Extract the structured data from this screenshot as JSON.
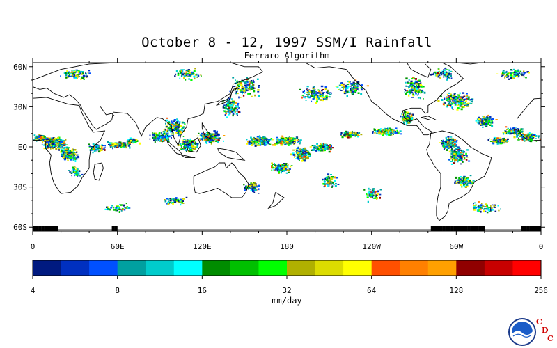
{
  "title": "October 8 - 12, 1997 SSM/I Rainfall",
  "subtitle": "Ferraro Algorithm",
  "map": {
    "lat_labels": [
      "60N",
      "30N",
      "EQ",
      "30S",
      "60S"
    ],
    "lat_values": [
      60,
      30,
      0,
      -30,
      -60
    ],
    "lon_labels": [
      "0",
      "60E",
      "120E",
      "180",
      "120W",
      "60W",
      "0"
    ],
    "lon_values": [
      0,
      60,
      120,
      180,
      240,
      300,
      360
    ],
    "lat_range": [
      -63,
      63
    ],
    "lon_range": [
      0,
      360
    ]
  },
  "colorbar": {
    "unit": "mm/day",
    "tick_labels": [
      "4",
      "8",
      "16",
      "32",
      "64",
      "128",
      "256"
    ],
    "colors": [
      "#001a80",
      "#0030c0",
      "#0050ff",
      "#00a0a0",
      "#00cccc",
      "#00ffff",
      "#008c00",
      "#00c000",
      "#00ff00",
      "#b0b000",
      "#dcdc00",
      "#ffff00",
      "#ff5000",
      "#ff8000",
      "#ffa000",
      "#900000",
      "#c80000",
      "#ff0000"
    ]
  },
  "logo": {
    "name": "NOAA",
    "letters": [
      "C",
      "D",
      "C"
    ]
  }
}
